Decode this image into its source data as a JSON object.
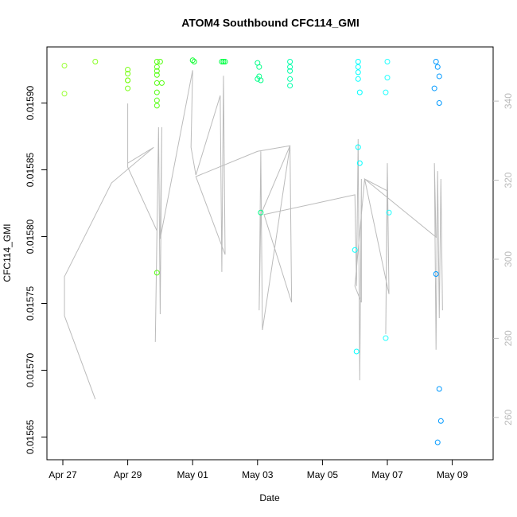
{
  "chart_data": {
    "type": "scatter",
    "title": "ATOM4 Southbound CFC114_GMI",
    "x_label": "Date",
    "y_label": "CFC114_GMI",
    "xlim": [
      -0.49,
      13.26
    ],
    "xticks": [
      {
        "value": 0,
        "label": "Apr 27"
      },
      {
        "value": 2,
        "label": "Apr 29"
      },
      {
        "value": 4,
        "label": "May 01"
      },
      {
        "value": 6,
        "label": "May 03"
      },
      {
        "value": 8,
        "label": "May 05"
      },
      {
        "value": 10,
        "label": "May 07"
      },
      {
        "value": 12,
        "label": "May 09"
      }
    ],
    "ylim": [
      0.015633,
      0.015942
    ],
    "yticks": [
      0.01565,
      {
        "value": 0.0157,
        "label": "0.01570"
      },
      0.01575,
      {
        "value": 0.0158,
        "label": "0.01580"
      },
      0.01585,
      {
        "value": 0.0159,
        "label": "0.01590"
      }
    ],
    "y2lim": [
      249.3,
      353.7
    ],
    "y2ticks": [
      260,
      280,
      300,
      320,
      340
    ],
    "series": [
      {
        "x": [
          0.05,
          0.05,
          1.0,
          2.0,
          2.0,
          2.0,
          2.0,
          2.0,
          2.9,
          2.9,
          2.9,
          2.9,
          2.9,
          2.9,
          2.9,
          2.9,
          2.9,
          3.0,
          3.05,
          4.0,
          4.05,
          4.9,
          4.95,
          5.0,
          6.0,
          6.05,
          6.05,
          6.1,
          6.0,
          6.1,
          7.0,
          7.0,
          7.0,
          7.0,
          7.0,
          9.1,
          9.1,
          9.1,
          9.1,
          9.15,
          9.1,
          9.15,
          9.0,
          9.05,
          10.0,
          10.0,
          9.95,
          10.05,
          9.95,
          11.5,
          11.55,
          11.6,
          11.45,
          11.6,
          11.5,
          11.6,
          11.65,
          11.55
        ],
        "values": [
          0.015928,
          0.015907,
          0.015931,
          0.015925,
          0.015922,
          0.015917,
          0.015911,
          0.015917,
          0.015931,
          0.015927,
          0.015924,
          0.015921,
          0.015915,
          0.015908,
          0.015902,
          0.015898,
          0.015773,
          0.015931,
          0.015915,
          0.015932,
          0.015931,
          0.015931,
          0.015931,
          0.015931,
          0.01593,
          0.015927,
          0.01592,
          0.015917,
          0.015918,
          0.015818,
          0.015931,
          0.015927,
          0.015924,
          0.015918,
          0.015913,
          0.015931,
          0.015927,
          0.015923,
          0.015918,
          0.015908,
          0.015867,
          0.015855,
          0.01579,
          0.015714,
          0.015931,
          0.015919,
          0.015908,
          0.015818,
          0.015724,
          0.015931,
          0.015927,
          0.01592,
          0.015911,
          0.0159,
          0.015772,
          0.015686,
          0.015662,
          0.015646
        ],
        "colors": [
          "#99ff33",
          "#99ff33",
          "#88ff22",
          "#77ff11",
          "#77ff11",
          "#77ff11",
          "#77ff11",
          "#77ff11",
          "#55ff11",
          "#55ff11",
          "#55ff11",
          "#55ff11",
          "#55ff11",
          "#55ff11",
          "#55ff11",
          "#55ff11",
          "#55ff11",
          "#55ff11",
          "#55ff11",
          "#11ff33",
          "#11ff33",
          "#00ff44",
          "#00ff44",
          "#00ff44",
          "#00ff88",
          "#00ff88",
          "#00ff88",
          "#00ff88",
          "#00ff88",
          "#00ff88",
          "#00ffaa",
          "#00ffaa",
          "#00ffaa",
          "#00ffaa",
          "#00ffaa",
          "#00ffff",
          "#00ffff",
          "#00ffff",
          "#00ffff",
          "#00ffff",
          "#00ffff",
          "#00ffff",
          "#00ffff",
          "#00ffff",
          "#22ffff",
          "#22ffff",
          "#22ffff",
          "#22ffff",
          "#22ffff",
          "#0099ff",
          "#0099ff",
          "#0099ff",
          "#0099ff",
          "#0099ff",
          "#0099ff",
          "#0099ff",
          "#0099ff",
          "#0099ff"
        ]
      },
      {
        "type": "line",
        "axis": "y2",
        "color": "#bbbbbb",
        "x": [
          1.0,
          0.05,
          0.05,
          1.5,
          2.8,
          2.0,
          2.0,
          2.0,
          2.9,
          2.85,
          2.95,
          3.0,
          3.05,
          3.0,
          4.0,
          3.95,
          4.1,
          4.85,
          4.9,
          4.95,
          5.0,
          4.1,
          6.0,
          7.0,
          6.1,
          6.05,
          6.1,
          6.15,
          7.0,
          7.05,
          6.2,
          9.0,
          9.05,
          9.1,
          9.15,
          9.2,
          9.2,
          9.0,
          9.3,
          10.0,
          9.95,
          10.0,
          10.05,
          9.3,
          11.5,
          11.45,
          11.5,
          11.55,
          11.6,
          11.65,
          11.7
        ],
        "values": [
          264.6,
          285.7,
          295.6,
          319.3,
          328.3,
          324.3,
          339.4,
          323.3,
          307.2,
          279.1,
          333.4,
          286.1,
          333.4,
          305.2,
          347.8,
          328.3,
          321.3,
          341.4,
          296.8,
          346.4,
          301.2,
          320.9,
          327.3,
          328.7,
          311.3,
          287.1,
          327.3,
          282.1,
          328.7,
          289.1,
          311.3,
          316.3,
          293.2,
          330.4,
          269.4,
          320.3,
          289.1,
          293.2,
          320.3,
          317.3,
          281.1,
          324.3,
          291.2,
          320.3,
          305.6,
          324.3,
          277.1,
          322.3,
          285.1,
          320.3,
          287.1
        ]
      }
    ]
  }
}
